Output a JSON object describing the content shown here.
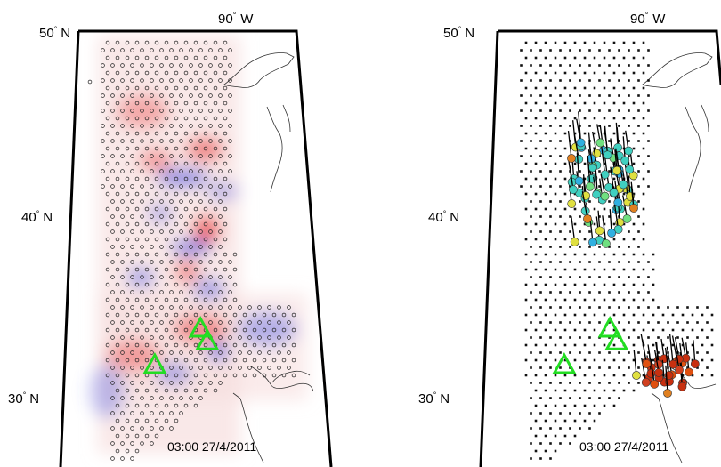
{
  "panels": [
    {
      "id": "left",
      "lat_top": "50",
      "lat_mid": "40",
      "lat_bottom": "30",
      "lat_hemisphere": "N",
      "lon_label": "90",
      "lon_hemisphere": "W",
      "timestamp": "03:00  27/4/2011",
      "degree_symbol": "°",
      "markers": "open-circles",
      "triangles": [
        {
          "lat": 33.7,
          "lon": -89.2
        },
        {
          "lat": 33.0,
          "lon": -88.8
        },
        {
          "lat": 31.7,
          "lon": -91.9
        }
      ]
    },
    {
      "id": "right",
      "lat_top": "50",
      "lat_mid": "40",
      "lat_bottom": "30",
      "lat_hemisphere": "N",
      "lon_label": "90",
      "lon_hemisphere": "W",
      "timestamp": "03:00  27/4/2011",
      "degree_symbol": "°",
      "markers": "dots-and-colored-vectors",
      "triangles": [
        {
          "lat": 33.7,
          "lon": -89.2
        },
        {
          "lat": 33.0,
          "lon": -88.8
        },
        {
          "lat": 31.7,
          "lon": -91.9
        }
      ]
    }
  ],
  "colors": {
    "triangle": "#22dd22",
    "positive_anomaly": "#e83030",
    "negative_anomaly": "#3040e0",
    "vector_high": "#c83010",
    "vector_mid": "#40d0c0",
    "vector_low": "#e0e040"
  }
}
